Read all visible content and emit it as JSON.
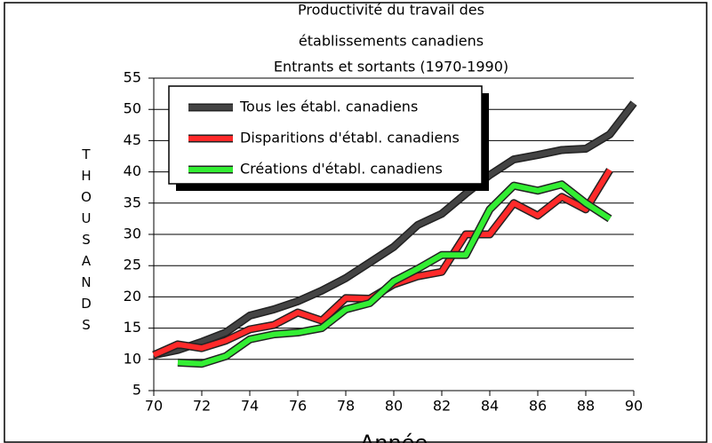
{
  "chart_data": {
    "type": "line",
    "title": [
      "Productivité du travail des",
      "établissements canadiens",
      "Entrants et sortants (1970-1990)"
    ],
    "ylabel": "THOUSANDS",
    "xlabel": "Année",
    "x": [
      70,
      71,
      72,
      73,
      74,
      75,
      76,
      77,
      78,
      79,
      80,
      81,
      82,
      83,
      84,
      85,
      86,
      87,
      88,
      89,
      90
    ],
    "series": [
      {
        "name": "Tous les établ. canadiens",
        "color": "#444444",
        "values": [
          10.7,
          11.5,
          12.8,
          14.3,
          17,
          18,
          19.3,
          21,
          23,
          25.5,
          28,
          31.5,
          33.3,
          36.5,
          39.5,
          42,
          42.7,
          43.5,
          43.7,
          46,
          51
        ]
      },
      {
        "name": "Disparitions d'établ. canadiens",
        "color": "#ff2a2a",
        "values": [
          10.7,
          12.4,
          11.8,
          13,
          14.8,
          15.5,
          17.5,
          16.2,
          19.8,
          19.7,
          22,
          23.3,
          24,
          30,
          30,
          35,
          33,
          36,
          34,
          40.3,
          null
        ]
      },
      {
        "name": "Créations d'établ. canadiens",
        "color": "#33ee33",
        "values": [
          null,
          9.5,
          9.3,
          10.5,
          13.2,
          14,
          14.3,
          15,
          18,
          19,
          22.5,
          24.5,
          26.7,
          26.7,
          34,
          37.8,
          37,
          38,
          35,
          32.5,
          null
        ]
      }
    ],
    "xlim": [
      70,
      90
    ],
    "xticks": [
      70,
      72,
      74,
      76,
      78,
      80,
      82,
      84,
      86,
      88,
      90
    ],
    "ylim": [
      5,
      55
    ],
    "yticks": [
      5,
      10,
      15,
      20,
      25,
      30,
      35,
      40,
      45,
      50,
      55
    ],
    "grid": true
  }
}
